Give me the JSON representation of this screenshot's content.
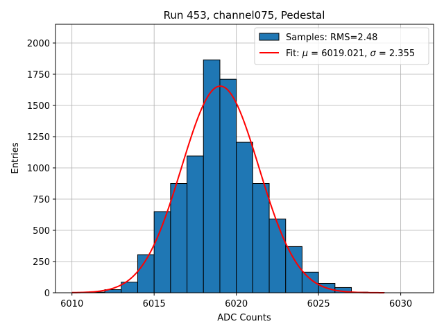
{
  "chart_data": {
    "type": "bar",
    "title": "Run 453, channel075, Pedestal",
    "xlabel": "ADC Counts",
    "ylabel": "Entries",
    "xlim": [
      6009,
      6032
    ],
    "ylim": [
      0,
      2150
    ],
    "xticks": [
      6010,
      6015,
      6020,
      6025,
      6030
    ],
    "yticks": [
      0,
      250,
      500,
      750,
      1000,
      1250,
      1500,
      1750,
      2000
    ],
    "grid": true,
    "legend_position": "top-right",
    "colors": {
      "bar": "#1f77b4",
      "bar_edge": "#000000",
      "fit": "#ff0000"
    },
    "histogram": {
      "name": "Samples: RMS=2.48",
      "bin_width": 1,
      "bins": [
        {
          "x": 6011,
          "value": 5
        },
        {
          "x": 6012,
          "value": 25
        },
        {
          "x": 6013,
          "value": 85
        },
        {
          "x": 6014,
          "value": 305
        },
        {
          "x": 6015,
          "value": 650
        },
        {
          "x": 6016,
          "value": 875
        },
        {
          "x": 6017,
          "value": 1095
        },
        {
          "x": 6018,
          "value": 1865
        },
        {
          "x": 6019,
          "value": 1710
        },
        {
          "x": 6020,
          "value": 1205
        },
        {
          "x": 6021,
          "value": 875
        },
        {
          "x": 6022,
          "value": 590
        },
        {
          "x": 6023,
          "value": 370
        },
        {
          "x": 6024,
          "value": 165
        },
        {
          "x": 6025,
          "value": 75
        },
        {
          "x": 6026,
          "value": 42
        },
        {
          "x": 6027,
          "value": 5
        },
        {
          "x": 6028,
          "value": 2
        }
      ]
    },
    "fit": {
      "name_prefix": "Fit: ",
      "mu_symbol": "μ",
      "mu_text": " = 6019.021, ",
      "sigma_symbol": "σ",
      "sigma_text": " = 2.355",
      "mu": 6019.021,
      "sigma": 2.355,
      "amplitude": 1655,
      "x_range": [
        6010,
        6029
      ]
    }
  }
}
